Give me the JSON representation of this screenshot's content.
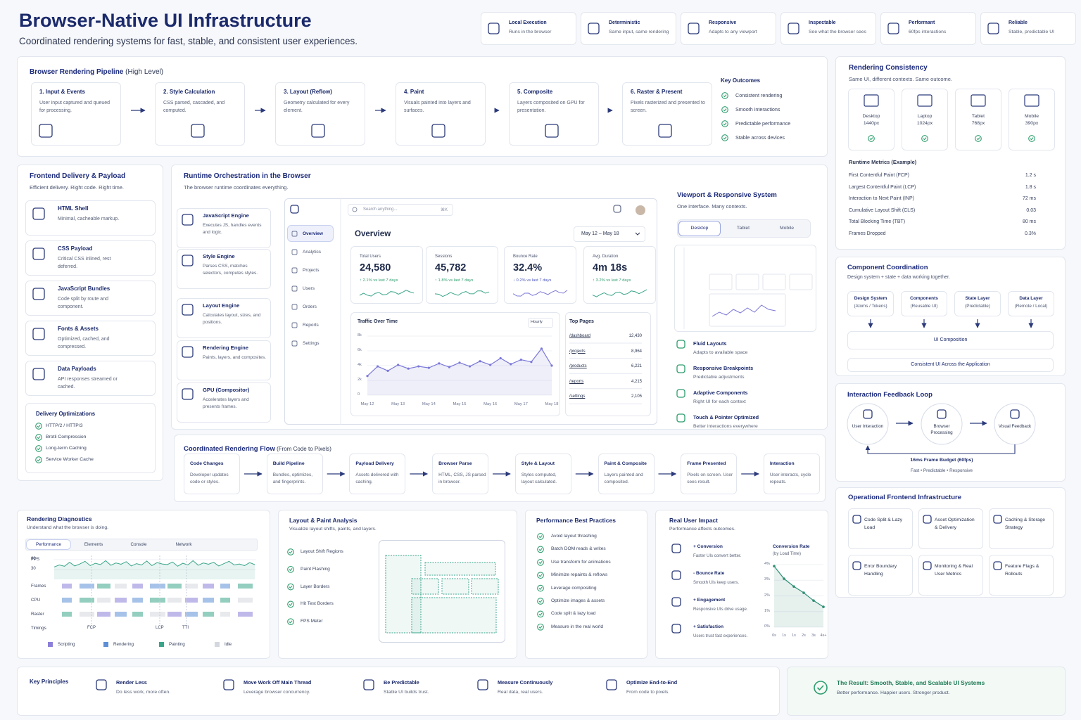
{
  "header": {
    "title": "Browser-Native UI Infrastructure",
    "subtitle": "Coordinated rendering systems for fast, stable, and consistent user experiences."
  },
  "badges": [
    {
      "title": "Local Execution",
      "text": "Runs in the browser"
    },
    {
      "title": "Deterministic",
      "text": "Same input, same rendering"
    },
    {
      "title": "Responsive",
      "text": "Adapts to any viewport"
    },
    {
      "title": "Inspectable",
      "text": "See what the browser sees"
    },
    {
      "title": "Performant",
      "text": "60fps interactions"
    },
    {
      "title": "Reliable",
      "text": "Stable, predictable UI"
    }
  ],
  "pipeline": {
    "title": "Browser Rendering Pipeline",
    "qualifier": "(High Level)",
    "steps": [
      {
        "title": "1. Input & Events",
        "text": "User input captured and queued for processing."
      },
      {
        "title": "2. Style Calculation",
        "text": "CSS parsed, cascaded, and computed."
      },
      {
        "title": "3. Layout (Reflow)",
        "text": "Geometry calculated for every element."
      },
      {
        "title": "4. Paint",
        "text": "Visuals painted into layers and surfaces."
      },
      {
        "title": "5. Composite",
        "text": "Layers composited on GPU for presentation."
      },
      {
        "title": "6. Raster & Present",
        "text": "Pixels rasterized and presented to screen."
      }
    ],
    "outcomes_title": "Key Outcomes",
    "outcomes": [
      "Consistent rendering",
      "Smooth interactions",
      "Predictable performance",
      "Stable across devices"
    ]
  },
  "consistency": {
    "title": "Rendering Consistency",
    "subtitle": "Same UI, different contexts. Same outcome.",
    "devices": [
      {
        "name": "Desktop",
        "size": "1440px"
      },
      {
        "name": "Laptop",
        "size": "1024px"
      },
      {
        "name": "Tablet",
        "size": "768px"
      },
      {
        "name": "Mobile",
        "size": "390px"
      }
    ],
    "metrics_title": "Runtime Metrics (Example)",
    "metrics": [
      [
        "First Contentful Paint (FCP)",
        "1.2 s"
      ],
      [
        "Largest Contentful Paint (LCP)",
        "1.8 s"
      ],
      [
        "Interaction to Next Paint (INP)",
        "72 ms"
      ],
      [
        "Cumulative Layout Shift (CLS)",
        "0.03"
      ],
      [
        "Total Blocking Time (TBT)",
        "80 ms"
      ],
      [
        "Frames Dropped",
        "0.3%"
      ]
    ]
  },
  "delivery": {
    "title": "Frontend Delivery & Payload",
    "subtitle": "Efficient delivery. Right code. Right time.",
    "items": [
      {
        "title": "HTML Shell",
        "text": "Minimal, cacheable markup."
      },
      {
        "title": "CSS Payload",
        "text": "Critical CSS inlined, rest deferred."
      },
      {
        "title": "JavaScript Bundles",
        "text": "Code split by route and component."
      },
      {
        "title": "Fonts & Assets",
        "text": "Optimized, cached, and compressed."
      },
      {
        "title": "Data Payloads",
        "text": "API responses streamed or cached."
      }
    ],
    "opt_title": "Delivery Optimizations",
    "opts": [
      "HTTP/2 / HTTP/3",
      "Brotli Compression",
      "Long-term Caching",
      "Service Worker Cache"
    ]
  },
  "runtime": {
    "title": "Runtime Orchestration in the Browser",
    "subtitle": "The browser runtime coordinates everything.",
    "engines": [
      {
        "title": "JavaScript Engine",
        "text": "Executes JS, handles events and logic."
      },
      {
        "title": "Style Engine",
        "text": "Parses CSS, matches selectors, computes styles."
      },
      {
        "title": "Layout Engine",
        "text": "Calculates layout, sizes, and positions."
      },
      {
        "title": "Rendering Engine",
        "text": "Paints, layers, and composites."
      },
      {
        "title": "GPU (Compositor)",
        "text": "Accelerates layers and presents frames."
      }
    ],
    "app": {
      "nav": [
        "Overview",
        "Analytics",
        "Projects",
        "Users",
        "Orders",
        "Reports",
        "Settings"
      ],
      "search": "Search anything...",
      "shortcut": "⌘K",
      "heading": "Overview",
      "date": "May 12 – May 18",
      "stats": [
        {
          "label": "Total Users",
          "value": "24,580",
          "delta": "↑ 2.1% vs last 7 days"
        },
        {
          "label": "Sessions",
          "value": "45,782",
          "delta": "↑ 1.8% vs last 7 days"
        },
        {
          "label": "Bounce Rate",
          "value": "32.4%",
          "delta": "↓ 0.2% vs last 7 days"
        },
        {
          "label": "Avg. Duration",
          "value": "4m 18s",
          "delta": "↑ 3.2% vs last 7 days"
        }
      ],
      "traffic": {
        "type": "line",
        "title": "Traffic Over Time",
        "interval": "Hourly",
        "color": "#7b78d8",
        "categories": [
          "May 12",
          null,
          null,
          "May 13",
          null,
          null,
          "May 14",
          null,
          null,
          "May 15",
          null,
          null,
          "May 16",
          null,
          null,
          "May 17",
          null,
          null,
          "May 18"
        ],
        "values": [
          2600,
          3900,
          3300,
          4100,
          3600,
          3900,
          3700,
          4300,
          3800,
          4400,
          3900,
          4600,
          4100,
          5000,
          4200,
          4800,
          4500,
          6300,
          4000
        ],
        "ylim": [
          0,
          8000
        ],
        "yticks": [
          0,
          {
            "value": 2000,
            "label": "2k"
          },
          {
            "value": 4000,
            "label": "4k"
          },
          {
            "value": 6000,
            "label": "6k"
          },
          {
            "value": 8000,
            "label": "8k"
          }
        ]
      },
      "top_pages": {
        "title": "Top Pages",
        "rows": [
          [
            "/dashboard",
            "12,430"
          ],
          [
            "/projects",
            "8,964"
          ],
          [
            "/products",
            "6,221"
          ],
          [
            "/reports",
            "4,215"
          ],
          [
            "/settings",
            "2,105"
          ]
        ]
      }
    }
  },
  "viewport": {
    "title": "Viewport & Responsive System",
    "subtitle": "One interface. Many contexts.",
    "tabs": [
      "Desktop",
      "Tablet",
      "Mobile"
    ],
    "features": [
      {
        "title": "Fluid Layouts",
        "text": "Adapts to available space"
      },
      {
        "title": "Responsive Breakpoints",
        "text": "Predictable adjustments"
      },
      {
        "title": "Adaptive Components",
        "text": "Right UI for each context"
      },
      {
        "title": "Touch & Pointer Optimized",
        "text": "Better interactions everywhere"
      }
    ]
  },
  "coordination": {
    "title": "Component Coordination",
    "subtitle": "Design system + state + data working together.",
    "boxes": [
      {
        "title": "Design System",
        "text": "(Atoms / Tokens)"
      },
      {
        "title": "Components",
        "text": "(Reusable UI)"
      },
      {
        "title": "State Layer",
        "text": "(Predictable)"
      },
      {
        "title": "Data Layer",
        "text": "(Remote / Local)"
      }
    ],
    "composition": "UI Composition",
    "result": "Consistent UI Across the Application"
  },
  "feedback": {
    "title": "Interaction Feedback Loop",
    "nodes": [
      "User Interaction",
      "Browser Processing",
      "Visual Feedback"
    ],
    "budget": "16ms Frame Budget (60fps)",
    "tagline": "Fast • Predictable • Responsive"
  },
  "flow": {
    "title": "Coordinated Rendering Flow",
    "qualifier": "(From Code to Pixels)",
    "steps": [
      {
        "title": "Code Changes",
        "text": "Developer updates code or styles."
      },
      {
        "title": "Build Pipeline",
        "text": "Bundles, optimizes, and fingerprints."
      },
      {
        "title": "Payload Delivery",
        "text": "Assets delivered with caching."
      },
      {
        "title": "Browser Parse",
        "text": "HTML, CSS, JS parsed in browser."
      },
      {
        "title": "Style & Layout",
        "text": "Styles computed, layout calculated."
      },
      {
        "title": "Paint & Composite",
        "text": "Layers painted and composited."
      },
      {
        "title": "Frame Presented",
        "text": "Pixels on screen. User sees result."
      },
      {
        "title": "Interaction",
        "text": "User interacts, cycle repeats."
      }
    ]
  },
  "ops": {
    "title": "Operational Frontend Infrastructure",
    "items": [
      "Code Split & Lazy Load",
      "Asset Optimization & Delivery",
      "Caching & Storage Strategy",
      "Error Boundary Handling",
      "Monitoring & Real User Metrics",
      "Feature Flags & Rollouts"
    ]
  },
  "diagnostics": {
    "title": "Rendering Diagnostics",
    "subtitle": "Understand what the browser is doing.",
    "tabs": [
      "Performance",
      "Elements",
      "Console",
      "Network"
    ],
    "fps": {
      "label": "FPS",
      "ylim": [
        0,
        60
      ],
      "yticks": [
        60,
        30
      ],
      "values": [
        38,
        44,
        40,
        52,
        41,
        47,
        55,
        42,
        49,
        45,
        57,
        43,
        50,
        46,
        54,
        41,
        48,
        44,
        56,
        42,
        51,
        47,
        45,
        53,
        40,
        49,
        44,
        57,
        43,
        50,
        46,
        52,
        41,
        48,
        55,
        44,
        47,
        42,
        51,
        45
      ]
    },
    "rows": [
      "Frames",
      "CPU",
      "Raster",
      "Timings"
    ],
    "markers": [
      "FCP",
      "LCP",
      "TTI"
    ],
    "legend": [
      {
        "name": "Scripting",
        "color": "#8b7fd9"
      },
      {
        "name": "Rendering",
        "color": "#5c8fd6"
      },
      {
        "name": "Painting",
        "color": "#3aa58a"
      },
      {
        "name": "Idle",
        "color": "#d4d7de"
      }
    ]
  },
  "layout_paint": {
    "title": "Layout & Paint Analysis",
    "subtitle": "Visualize layout shifts, paints, and layers.",
    "items": [
      "Layout Shift Regions",
      "Paint Flashing",
      "Layer Borders",
      "Hit Test Borders",
      "FPS Meter"
    ]
  },
  "practices": {
    "title": "Performance Best Practices",
    "items": [
      "Avoid layout thrashing",
      "Batch DOM reads & writes",
      "Use transform for animations",
      "Minimize repaints & reflows",
      "Leverage compositing",
      "Optimize images & assets",
      "Code split & lazy load",
      "Measure in the real world"
    ]
  },
  "real_user": {
    "title": "Real User Impact",
    "subtitle": "Performance affects outcomes.",
    "items": [
      {
        "title": "+ Conversion",
        "text": "Faster UIs convert better."
      },
      {
        "title": "- Bounce Rate",
        "text": "Smooth UIs keep users."
      },
      {
        "title": "+ Engagement",
        "text": "Responsive UIs drive usage."
      },
      {
        "title": "+ Satisfaction",
        "text": "Users trust fast experiences."
      }
    ],
    "chart": {
      "type": "line",
      "title": "Conversion Rate",
      "subtitle": "(by Load Time)",
      "color": "#2e8f74",
      "categories": [
        "0s",
        "1s",
        "1s",
        "2s",
        "3s",
        "4s+"
      ],
      "values": [
        3.9,
        3.1,
        2.6,
        2.2,
        1.7,
        1.3
      ],
      "ylim": [
        0,
        4
      ],
      "yticks": [
        {
          "value": 0,
          "label": "0%"
        },
        {
          "value": 1,
          "label": "1%"
        },
        {
          "value": 2,
          "label": "2%"
        },
        {
          "value": 3,
          "label": "3%"
        },
        {
          "value": 4,
          "label": "4%"
        }
      ]
    }
  },
  "principles": {
    "title": "Key Principles",
    "items": [
      {
        "title": "Render Less",
        "text": "Do less work, more often."
      },
      {
        "title": "Move Work Off Main Thread",
        "text": "Leverage browser concurrency."
      },
      {
        "title": "Be Predictable",
        "text": "Stable UI builds trust."
      },
      {
        "title": "Measure Continuously",
        "text": "Real data, real users."
      },
      {
        "title": "Optimize End-to-End",
        "text": "From code to pixels."
      }
    ]
  },
  "result": {
    "title": "The Result: Smooth, Stable, and Scalable UI Systems",
    "text": "Better performance. Happier users. Stronger product."
  }
}
